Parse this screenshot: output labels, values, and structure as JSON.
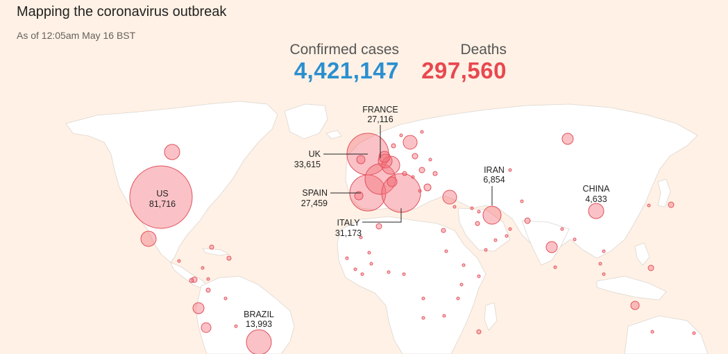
{
  "title": "Mapping the coronavirus outbreak",
  "subtitle": "As of 12:05am May 16 BST",
  "stats": {
    "cases_label": "Confirmed cases",
    "cases_value": "4,421,147",
    "deaths_label": "Deaths",
    "deaths_value": "297,560"
  },
  "colors": {
    "background": "#fff1e5",
    "cases": "#2a8fd0",
    "deaths": "#e8484f",
    "bubble_stroke": "#e2505c"
  },
  "labeled_countries": [
    {
      "name": "US",
      "deaths": "81,716"
    },
    {
      "name": "BRAZIL",
      "deaths": "13,993"
    },
    {
      "name": "FRANCE",
      "deaths": "27,116"
    },
    {
      "name": "UK",
      "deaths": "33,615"
    },
    {
      "name": "SPAIN",
      "deaths": "27,459"
    },
    {
      "name": "ITALY",
      "deaths": "31,173"
    },
    {
      "name": "IRAN",
      "deaths": "6,854"
    },
    {
      "name": "CHINA",
      "deaths": "4,633"
    }
  ]
}
